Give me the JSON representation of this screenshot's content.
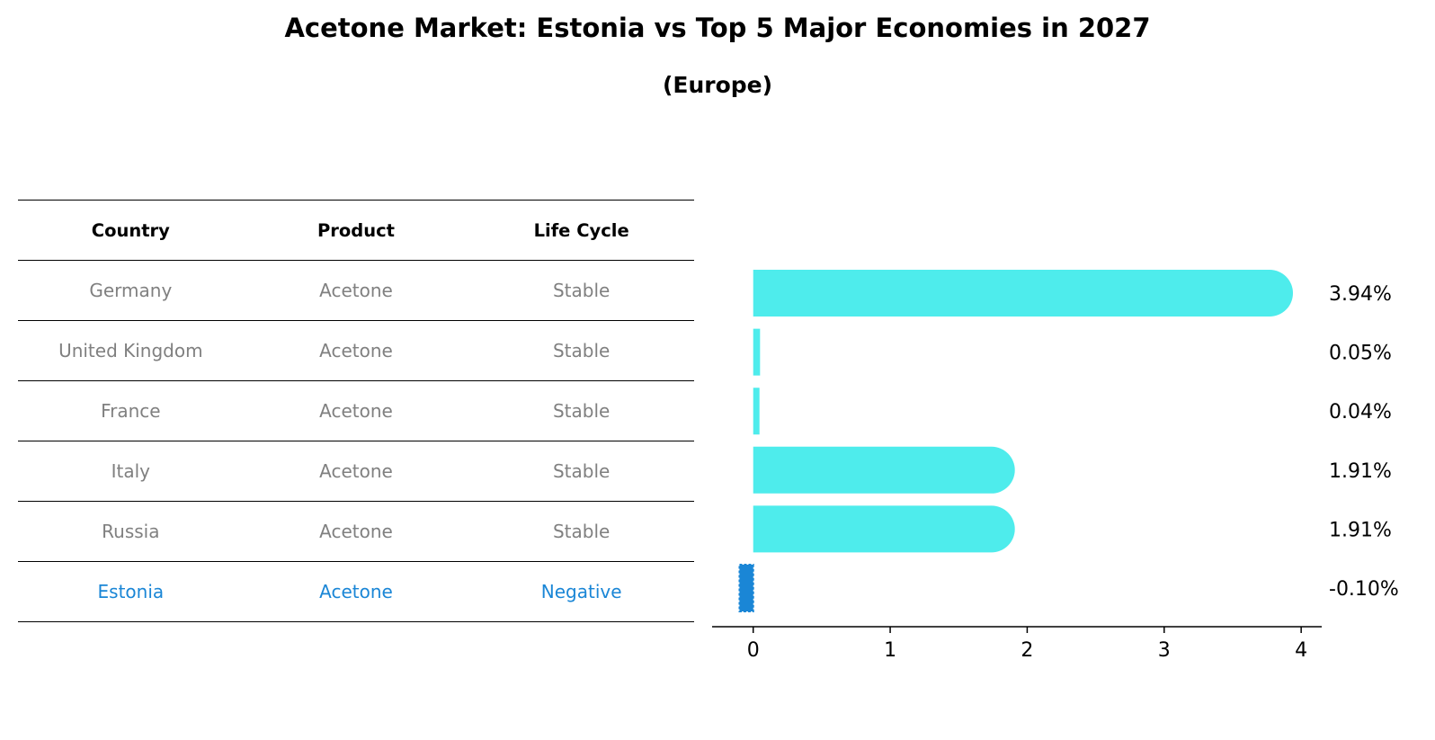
{
  "title": "Acetone Market: Estonia vs Top 5 Major Economies in 2027",
  "subtitle": "(Europe)",
  "table": {
    "headers": [
      "Country",
      "Product",
      "Life Cycle"
    ],
    "rows": [
      [
        "Germany",
        "Acetone",
        "Stable"
      ],
      [
        "United Kingdom",
        "Acetone",
        "Stable"
      ],
      [
        "France",
        "Acetone",
        "Stable"
      ],
      [
        "Italy",
        "Acetone",
        "Stable"
      ],
      [
        "Russia",
        "Acetone",
        "Stable"
      ],
      [
        "Estonia",
        "Acetone",
        "Negative"
      ]
    ],
    "highlight_row": 5
  },
  "colors": {
    "bar": "#4eecec",
    "highlight": "#1a86d6",
    "muted_text": "#808080"
  },
  "chart_data": {
    "type": "bar",
    "orientation": "horizontal",
    "categories": [
      "Germany",
      "United Kingdom",
      "France",
      "Italy",
      "Russia",
      "Estonia"
    ],
    "values": [
      3.94,
      0.05,
      0.04,
      1.91,
      1.91,
      -0.1
    ],
    "data_labels": [
      "3.94%",
      "0.05%",
      "0.04%",
      "1.91%",
      "1.91%",
      "-0.10%"
    ],
    "xlim": [
      -0.3,
      4.15
    ],
    "xticks": [
      0,
      1,
      2,
      3,
      4
    ],
    "xtick_labels": [
      "0",
      "1",
      "2",
      "3",
      "4"
    ],
    "title": "Acetone Market: Estonia vs Top 5 Major Economies in 2027",
    "xlabel": "",
    "ylabel": "",
    "grid": false
  }
}
